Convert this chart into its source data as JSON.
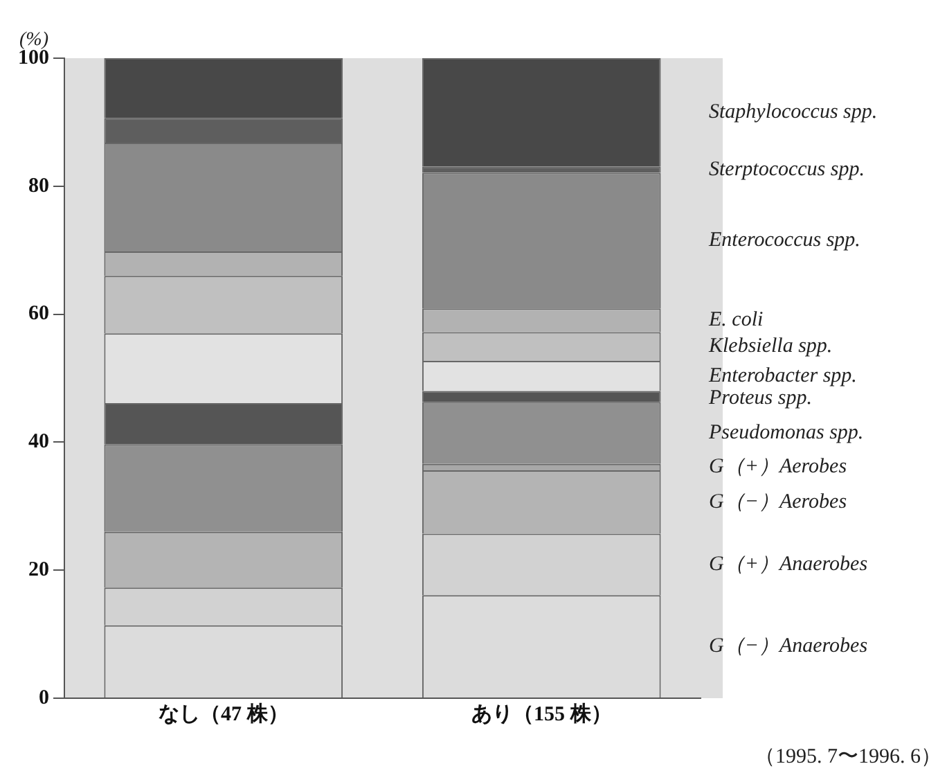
{
  "chart_data": {
    "type": "bar",
    "stacked": true,
    "ylabel": "(%)",
    "categories": [
      "なし（47 株）",
      "あり（155 株）"
    ],
    "ylim": [
      0,
      100
    ],
    "yticks": [
      0,
      20,
      40,
      60,
      80,
      100
    ],
    "grid": false,
    "legend": false,
    "series": [
      {
        "name": "G（−）Anaerobes",
        "color": "#dcdcdc",
        "values": [
          11.4,
          16.1
        ]
      },
      {
        "name": "G（+）Anaerobes",
        "color": "#d2d2d2",
        "values": [
          5.9,
          9.6
        ]
      },
      {
        "name": "G（−）Aerobes",
        "color": "#b4b4b4",
        "values": [
          8.7,
          9.9
        ]
      },
      {
        "name": "G（+）Aerobes",
        "color": "#a8a8a8",
        "values": [
          0,
          1.0
        ]
      },
      {
        "name": "Pseudomonas spp.",
        "color": "#909090",
        "values": [
          13.7,
          9.7
        ]
      },
      {
        "name": "Proteus spp.",
        "color": "#555555",
        "values": [
          6.4,
          1.7
        ]
      },
      {
        "name": "Enterobacter spp.",
        "color": "#e2e2e2",
        "values": [
          10.9,
          4.7
        ]
      },
      {
        "name": "Klebsiella spp.",
        "color": "#c0c0c0",
        "values": [
          9.0,
          4.5
        ]
      },
      {
        "name": "E. coli",
        "color": "#b2b2b2",
        "values": [
          3.8,
          3.7
        ]
      },
      {
        "name": "Enterococcus spp.",
        "color": "#8a8a8a",
        "values": [
          17.0,
          21.2
        ]
      },
      {
        "name": "Sterptococcus spp.",
        "color": "#5e5e5e",
        "values": [
          3.8,
          1.0
        ]
      },
      {
        "name": "Staphylococcus spp.",
        "color": "#484848",
        "values": [
          9.4,
          16.9
        ]
      }
    ],
    "annotations": [
      "（1995. 7〜1996. 6）"
    ]
  }
}
